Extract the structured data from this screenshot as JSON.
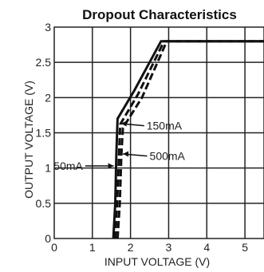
{
  "chart_data": {
    "type": "line",
    "title": "Dropout Characteristics",
    "xlabel": "INPUT VOLTAGE (V)",
    "ylabel": "OUTPUT VOLTAGE (V)",
    "xlim": [
      0,
      5.5
    ],
    "ylim": [
      0,
      3
    ],
    "x_ticks": [
      "0",
      "1",
      "2",
      "3",
      "4",
      "5"
    ],
    "y_ticks": [
      "0",
      "0.5",
      "1",
      "1.5",
      "2",
      "2.5",
      "3"
    ],
    "grid": true,
    "series": [
      {
        "name": "50mA",
        "style": "solid",
        "color": "#111111",
        "x": [
          1.55,
          1.6,
          1.63,
          1.66,
          2.1,
          2.8,
          5.5
        ],
        "y": [
          0,
          0.5,
          1.2,
          1.7,
          2.1,
          2.8,
          2.8
        ]
      },
      {
        "name": "150mA",
        "style": "dash",
        "color": "#111111",
        "x": [
          1.6,
          1.65,
          1.7,
          1.73,
          2.2,
          2.88,
          5.5
        ],
        "y": [
          0,
          0.5,
          1.2,
          1.62,
          2.05,
          2.8,
          2.8
        ]
      },
      {
        "name": "500mA",
        "style": "dash",
        "color": "#111111",
        "x": [
          1.66,
          1.72,
          1.76,
          1.8,
          2.3,
          2.95,
          5.5
        ],
        "y": [
          0,
          0.5,
          1.2,
          1.57,
          2.0,
          2.8,
          2.8
        ]
      }
    ],
    "annotations": [
      {
        "text": "150mA",
        "target": "150mA",
        "text_at": [
          2.42,
          1.6
        ],
        "arrow_to": [
          1.75,
          1.63
        ]
      },
      {
        "text": "500mA",
        "target": "500mA",
        "text_at": [
          2.5,
          1.17
        ],
        "arrow_to": [
          1.8,
          1.2
        ]
      },
      {
        "text": "50mA",
        "target": "50mA",
        "text_at": [
          0.75,
          1.03
        ],
        "arrow_to": [
          1.56,
          1.03
        ]
      }
    ]
  }
}
